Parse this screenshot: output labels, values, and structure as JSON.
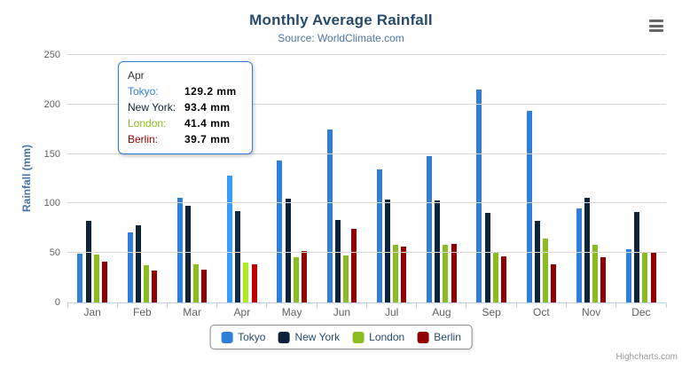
{
  "header": {
    "title": "Monthly Average Rainfall",
    "subtitle": "Source: WorldClimate.com"
  },
  "toolbar": {
    "menu_icon": "hamburger-menu-icon"
  },
  "yaxis": {
    "title": "Rainfall (mm)"
  },
  "chart_data": {
    "type": "bar",
    "title": "Monthly Average Rainfall",
    "subtitle": "Source: WorldClimate.com",
    "xlabel": "",
    "ylabel": "Rainfall (mm)",
    "ylim": [
      0,
      250
    ],
    "yticks": [
      0,
      50,
      100,
      150,
      200,
      250
    ],
    "grid": true,
    "legend_position": "bottom",
    "categories": [
      "Jan",
      "Feb",
      "Mar",
      "Apr",
      "May",
      "Jun",
      "Jul",
      "Aug",
      "Sep",
      "Oct",
      "Nov",
      "Dec"
    ],
    "series": [
      {
        "name": "Tokyo",
        "color": "#2f7ed8",
        "values": [
          49.9,
          71.5,
          106.4,
          129.2,
          144.0,
          176.0,
          135.6,
          148.5,
          216.4,
          194.1,
          95.6,
          54.4
        ]
      },
      {
        "name": "New York",
        "color": "#0d233a",
        "values": [
          83.6,
          78.8,
          98.5,
          93.4,
          106.0,
          84.5,
          105.0,
          104.3,
          91.2,
          83.5,
          106.6,
          92.3
        ]
      },
      {
        "name": "London",
        "color": "#8bbc21",
        "values": [
          48.9,
          38.8,
          39.3,
          41.4,
          47.0,
          48.3,
          59.0,
          59.6,
          52.4,
          65.2,
          59.3,
          51.2
        ]
      },
      {
        "name": "Berlin",
        "color": "#910000",
        "values": [
          42.4,
          33.2,
          34.5,
          39.7,
          52.6,
          75.5,
          57.4,
          60.4,
          47.6,
          39.1,
          46.8,
          51.1
        ]
      }
    ],
    "hovered_category": "Apr",
    "unit": "mm"
  },
  "tooltip": {
    "header": "Apr",
    "rows": [
      {
        "series": "Tokyo",
        "value": "129.2 mm"
      },
      {
        "series": "New York",
        "value": "93.4 mm"
      },
      {
        "series": "London",
        "value": "41.4 mm"
      },
      {
        "series": "Berlin",
        "value": "39.7 mm"
      }
    ]
  },
  "legend": {
    "items": [
      "Tokyo",
      "New York",
      "London",
      "Berlin"
    ]
  },
  "credits": {
    "text": "Highcharts.com"
  },
  "colors": {
    "title": "#274b6d",
    "subtitle": "#4d759e",
    "axis_labels": "#606060",
    "yaxis_title": "#4572a7",
    "gridline": "#d8d8d8",
    "axis_line": "#c0d0e0",
    "legend_border": "#909090",
    "tooltip_border": "#2f7ed8"
  }
}
